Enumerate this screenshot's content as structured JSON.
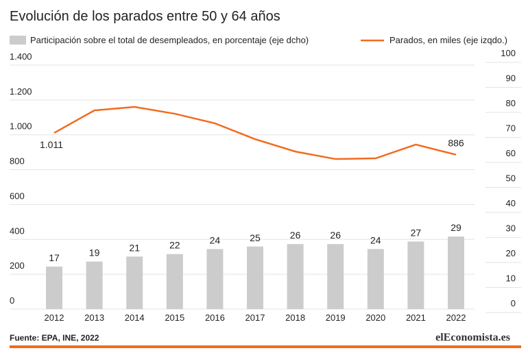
{
  "chart_data": {
    "type": "bar+line",
    "title": "Evolución de los parados entre 50 y 64 años",
    "categories": [
      "2012",
      "2013",
      "2014",
      "2015",
      "2016",
      "2017",
      "2018",
      "2019",
      "2020",
      "2021",
      "2022"
    ],
    "series": [
      {
        "name": "Participación sobre el total de desempleados, en porcentaje (eje dcho)",
        "type": "bar",
        "axis": "y2",
        "color": "#cccccc",
        "values": [
          17,
          19,
          21,
          22,
          24,
          25,
          26,
          26,
          24,
          27,
          29
        ]
      },
      {
        "name": "Parados, en miles (eje izqdo.)",
        "type": "line",
        "axis": "y",
        "color": "#f26b1d",
        "values": [
          1011,
          1140,
          1160,
          1121,
          1066,
          975,
          904,
          861,
          865,
          944,
          886
        ],
        "value_labels": [
          "1.011",
          null,
          null,
          null,
          null,
          null,
          null,
          null,
          null,
          null,
          "886"
        ]
      }
    ],
    "ylim": [
      0,
      1400
    ],
    "yticks": [
      0,
      200,
      400,
      600,
      800,
      {
        "value": 1000,
        "label": "1.000"
      },
      {
        "value": 1200,
        "label": "1.200"
      },
      {
        "value": 1400,
        "label": "1.400"
      }
    ],
    "y2lim": [
      0,
      100
    ],
    "y2ticks": [
      0,
      10,
      20,
      30,
      40,
      50,
      60,
      70,
      80,
      90,
      100
    ],
    "grid": true,
    "source": "Fuente: EPA, INE, 2022",
    "logo": "elEconomista.es"
  }
}
